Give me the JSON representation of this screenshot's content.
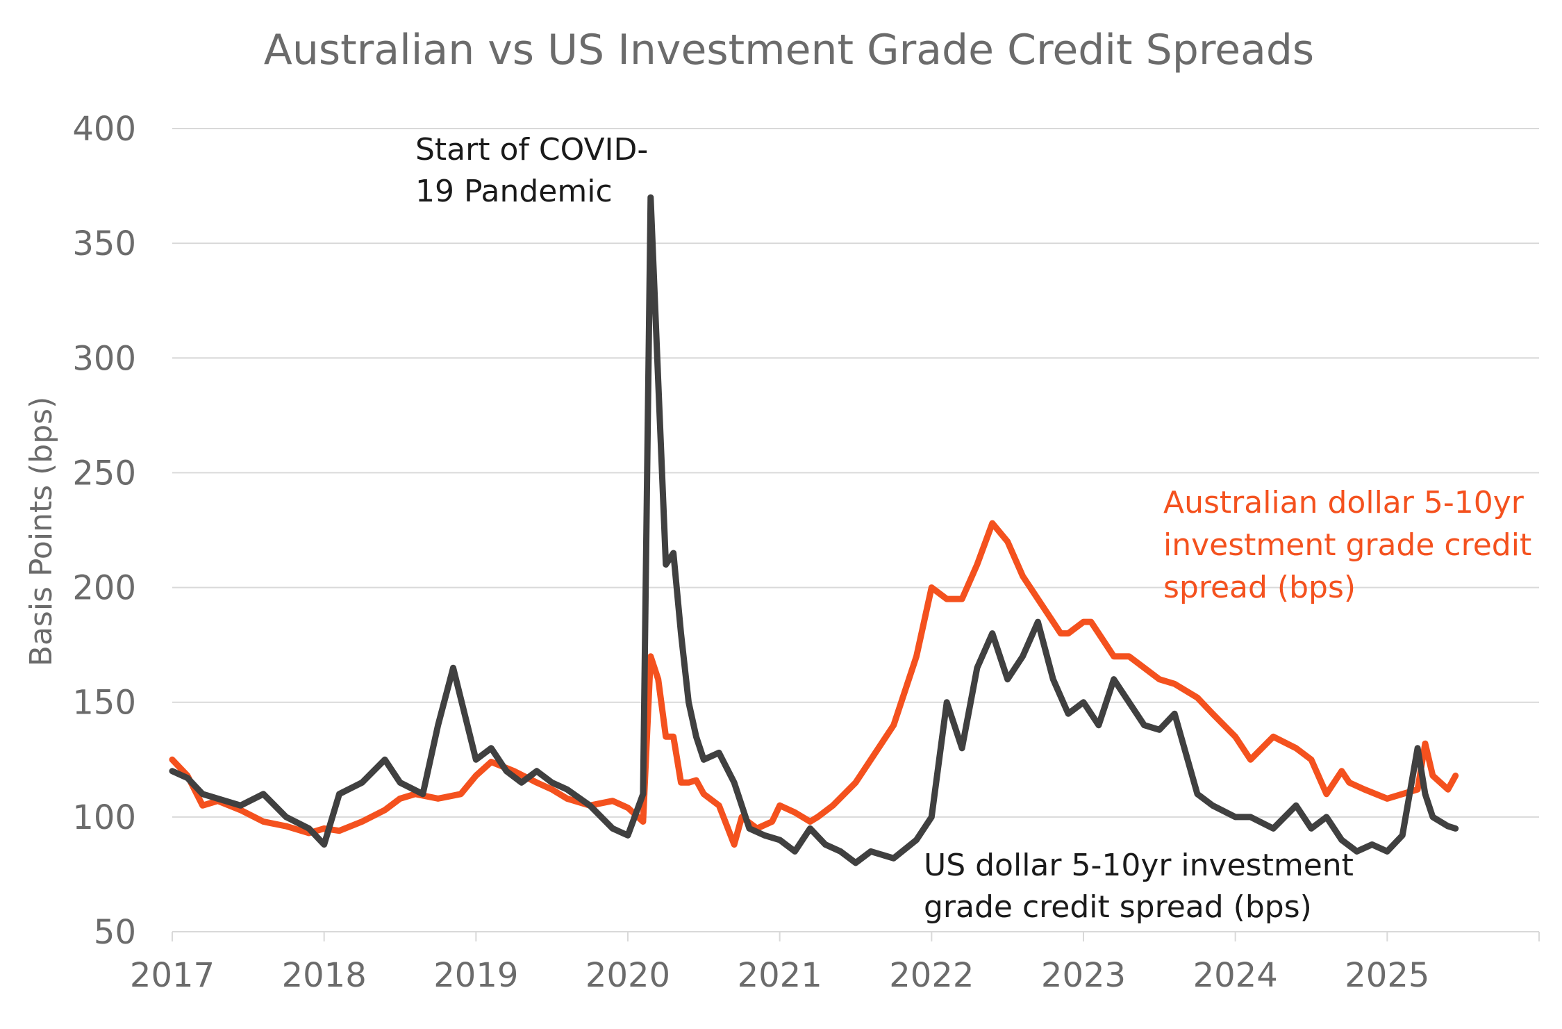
{
  "chart_data": {
    "type": "line",
    "title": "Australian vs US Investment Grade Credit Spreads",
    "ylabel": "Basis Points (bps)",
    "xlabel": "",
    "ylim": [
      50,
      400
    ],
    "yticks": [
      50,
      100,
      150,
      200,
      250,
      300,
      350,
      400
    ],
    "xlim": [
      2017,
      2026
    ],
    "xticks": [
      2017,
      2018,
      2019,
      2020,
      2021,
      2022,
      2023,
      2024,
      2025
    ],
    "grid": "horizontal",
    "colors": {
      "aud": "#f4511e",
      "usd": "#404040",
      "grid": "#d9d9d9",
      "text": "#6b6b6b"
    },
    "annotations": [
      {
        "lines": [
          "Start of COVID-",
          "19 Pandemic"
        ],
        "color": "#1a1a1a"
      },
      {
        "lines": [
          "Australian dollar 5-10yr",
          "investment grade credit",
          "spread (bps)"
        ],
        "color": "#f4511e"
      },
      {
        "lines": [
          "US dollar 5-10yr investment",
          "grade credit spread (bps)"
        ],
        "color": "#1a1a1a"
      }
    ],
    "series": [
      {
        "key": "aud",
        "x": [
          2017.0,
          2017.1,
          2017.2,
          2017.3,
          2017.45,
          2017.6,
          2017.75,
          2017.9,
          2018.0,
          2018.1,
          2018.25,
          2018.4,
          2018.5,
          2018.6,
          2018.75,
          2018.9,
          2019.0,
          2019.1,
          2019.25,
          2019.4,
          2019.5,
          2019.6,
          2019.75,
          2019.9,
          2020.0,
          2020.1,
          2020.15,
          2020.2,
          2020.25,
          2020.3,
          2020.35,
          2020.4,
          2020.45,
          2020.5,
          2020.6,
          2020.7,
          2020.75,
          2020.85,
          2020.95,
          2021.0,
          2021.1,
          2021.2,
          2021.25,
          2021.35,
          2021.5,
          2021.6,
          2021.75,
          2021.9,
          2022.0,
          2022.1,
          2022.2,
          2022.3,
          2022.4,
          2022.5,
          2022.6,
          2022.7,
          2022.8,
          2022.85,
          2022.9,
          2023.0,
          2023.05,
          2023.1,
          2023.15,
          2023.2,
          2023.3,
          2023.5,
          2023.6,
          2023.75,
          2023.85,
          2024.0,
          2024.1,
          2024.25,
          2024.4,
          2024.5,
          2024.6,
          2024.7,
          2024.75,
          2024.85,
          2025.0,
          2025.1,
          2025.2,
          2025.25,
          2025.3,
          2025.4,
          2025.45
        ],
        "y": [
          125,
          118,
          105,
          107,
          103,
          98,
          96,
          93,
          95,
          94,
          98,
          103,
          108,
          110,
          108,
          110,
          118,
          124,
          120,
          115,
          112,
          108,
          105,
          107,
          104,
          98,
          170,
          160,
          135,
          135,
          115,
          115,
          116,
          110,
          105,
          88,
          100,
          95,
          98,
          105,
          102,
          98,
          100,
          105,
          115,
          125,
          140,
          170,
          200,
          195,
          195,
          210,
          228,
          220,
          205,
          195,
          185,
          180,
          180,
          185,
          185,
          180,
          175,
          170,
          170,
          160,
          158,
          152,
          145,
          135,
          125,
          135,
          130,
          125,
          110,
          120,
          115,
          112,
          108,
          110,
          112,
          132,
          118,
          112,
          118
        ]
      },
      {
        "key": "usd",
        "x": [
          2017.0,
          2017.1,
          2017.2,
          2017.3,
          2017.45,
          2017.6,
          2017.75,
          2017.9,
          2018.0,
          2018.1,
          2018.25,
          2018.4,
          2018.5,
          2018.65,
          2018.75,
          2018.85,
          2019.0,
          2019.1,
          2019.2,
          2019.3,
          2019.4,
          2019.5,
          2019.6,
          2019.75,
          2019.9,
          2020.0,
          2020.1,
          2020.15,
          2020.2,
          2020.25,
          2020.3,
          2020.35,
          2020.4,
          2020.45,
          2020.5,
          2020.6,
          2020.7,
          2020.8,
          2020.9,
          2021.0,
          2021.1,
          2021.2,
          2021.3,
          2021.4,
          2021.5,
          2021.6,
          2021.75,
          2021.9,
          2022.0,
          2022.1,
          2022.2,
          2022.3,
          2022.4,
          2022.5,
          2022.6,
          2022.7,
          2022.8,
          2022.9,
          2023.0,
          2023.1,
          2023.2,
          2023.3,
          2023.4,
          2023.5,
          2023.6,
          2023.75,
          2023.85,
          2024.0,
          2024.1,
          2024.25,
          2024.4,
          2024.5,
          2024.6,
          2024.7,
          2024.8,
          2024.9,
          2025.0,
          2025.1,
          2025.2,
          2025.25,
          2025.3,
          2025.4,
          2025.45
        ],
        "y": [
          120,
          117,
          110,
          108,
          105,
          110,
          100,
          95,
          88,
          110,
          115,
          125,
          115,
          110,
          140,
          165,
          125,
          130,
          120,
          115,
          120,
          115,
          112,
          105,
          95,
          92,
          110,
          370,
          290,
          210,
          215,
          180,
          150,
          135,
          125,
          128,
          115,
          95,
          92,
          90,
          85,
          95,
          88,
          85,
          80,
          85,
          82,
          90,
          100,
          150,
          130,
          165,
          180,
          160,
          170,
          185,
          160,
          145,
          150,
          140,
          160,
          150,
          140,
          138,
          145,
          110,
          105,
          100,
          100,
          95,
          105,
          95,
          100,
          90,
          85,
          88,
          85,
          92,
          130,
          110,
          100,
          96,
          95
        ]
      }
    ]
  }
}
